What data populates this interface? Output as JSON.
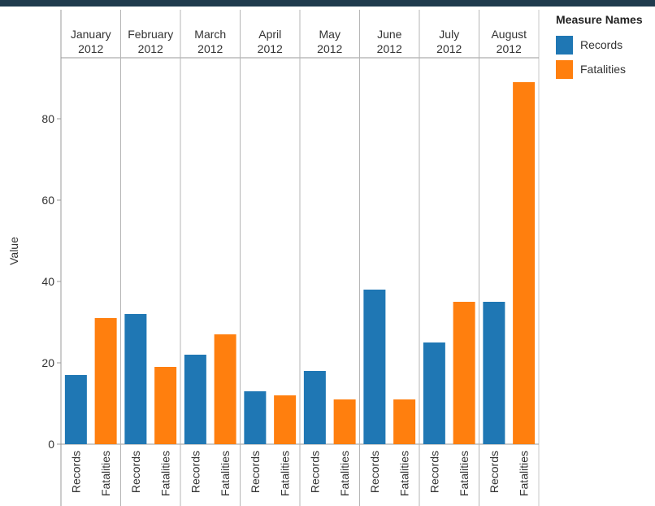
{
  "chart_data": {
    "type": "bar",
    "title": "",
    "ylabel": "Value",
    "xlabel": "",
    "ylim": [
      0,
      95
    ],
    "yticks": [
      0,
      20,
      40,
      60,
      80
    ],
    "grid": false,
    "legend_position": "right",
    "legend_title": "Measure Names",
    "months": [
      {
        "line1": "January",
        "line2": "2012"
      },
      {
        "line1": "February",
        "line2": "2012"
      },
      {
        "line1": "March",
        "line2": "2012"
      },
      {
        "line1": "April",
        "line2": "2012"
      },
      {
        "line1": "May",
        "line2": "2012"
      },
      {
        "line1": "June",
        "line2": "2012"
      },
      {
        "line1": "July",
        "line2": "2012"
      },
      {
        "line1": "August",
        "line2": "2012"
      }
    ],
    "series": [
      {
        "name": "Records",
        "color": "#1f77b4",
        "values": [
          17,
          32,
          22,
          13,
          18,
          38,
          25,
          35
        ]
      },
      {
        "name": "Fatalities",
        "color": "#ff7f0e",
        "values": [
          31,
          19,
          27,
          12,
          11,
          11,
          35,
          89
        ]
      }
    ]
  }
}
